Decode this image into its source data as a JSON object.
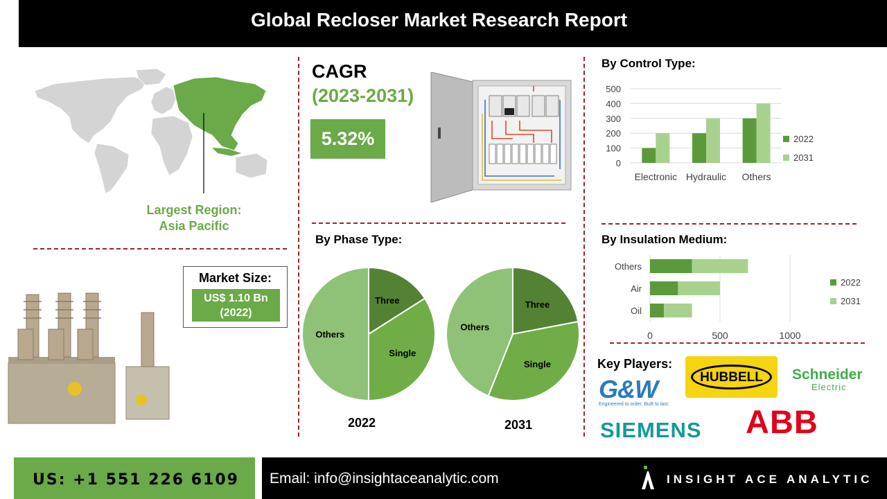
{
  "title": "Global Recloser Market Research Report",
  "region": {
    "label_line1": "Largest Region:",
    "label_line2": "Asia Pacific"
  },
  "cagr": {
    "title": "CAGR",
    "years": "(2023-2031)",
    "value": "5.32%"
  },
  "market_size": {
    "label": "Market Size:",
    "value_line1": "US$ 1.10 Bn",
    "value_line2": "(2022)"
  },
  "sections": {
    "control_type": "By Control Type:",
    "phase_type": "By Phase Type:",
    "insulation": "By Insulation Medium:",
    "key_players": "Key Players:"
  },
  "key_players": {
    "gw": {
      "name": "G&W",
      "tagline": "Engineered to order. Built to last."
    },
    "hubbell": "HUBBELL",
    "schneider": {
      "line1": "Schneider",
      "line2": "Electric"
    },
    "siemens": "SIEMENS",
    "abb": "ABB"
  },
  "colors": {
    "dark_green": "#5b9a3a",
    "mid_green": "#70ad47",
    "light_green": "#a9d18e",
    "pie_light": "#8fc277",
    "accent_red": "#a0202a"
  },
  "footer": {
    "phone": "US: +1 551 226 6109",
    "email": "Email: info@insightaceanalytic.com",
    "brand": "INSIGHT ACE ANALYTIC"
  },
  "chart_data": [
    {
      "id": "control_type",
      "type": "bar",
      "categories": [
        "Electronic",
        "Hydraulic",
        "Others"
      ],
      "series": [
        {
          "name": "2022",
          "values": [
            100,
            200,
            300
          ],
          "color": "#5b9a3a"
        },
        {
          "name": "2031",
          "values": [
            200,
            300,
            400
          ],
          "color": "#a9d18e"
        }
      ],
      "ylim": [
        0,
        500
      ],
      "yticks": [
        0,
        100,
        200,
        300,
        400,
        500
      ],
      "grid": true,
      "legend": "right"
    },
    {
      "id": "insulation",
      "type": "bar",
      "orientation": "horizontal",
      "stacked": true,
      "categories": [
        "Oil",
        "Air",
        "Others"
      ],
      "series": [
        {
          "name": "2022",
          "values": [
            100,
            200,
            300
          ],
          "color": "#5b9a3a"
        },
        {
          "name": "2031",
          "values": [
            200,
            300,
            400
          ],
          "color": "#a9d18e"
        }
      ],
      "xlim": [
        0,
        1000
      ],
      "xticks": [
        0,
        500,
        1000
      ],
      "grid": true,
      "legend": "right"
    },
    {
      "id": "phase_2022",
      "type": "pie",
      "title": "2022",
      "labels": [
        "Three",
        "Single",
        "Others"
      ],
      "values": [
        16,
        34,
        50
      ],
      "colors": [
        "#548235",
        "#70ad47",
        "#8fc277"
      ]
    },
    {
      "id": "phase_2031",
      "type": "pie",
      "title": "2031",
      "labels": [
        "Three",
        "Single",
        "Others"
      ],
      "values": [
        22,
        34,
        44
      ],
      "colors": [
        "#548235",
        "#70ad47",
        "#8fc277"
      ]
    }
  ]
}
